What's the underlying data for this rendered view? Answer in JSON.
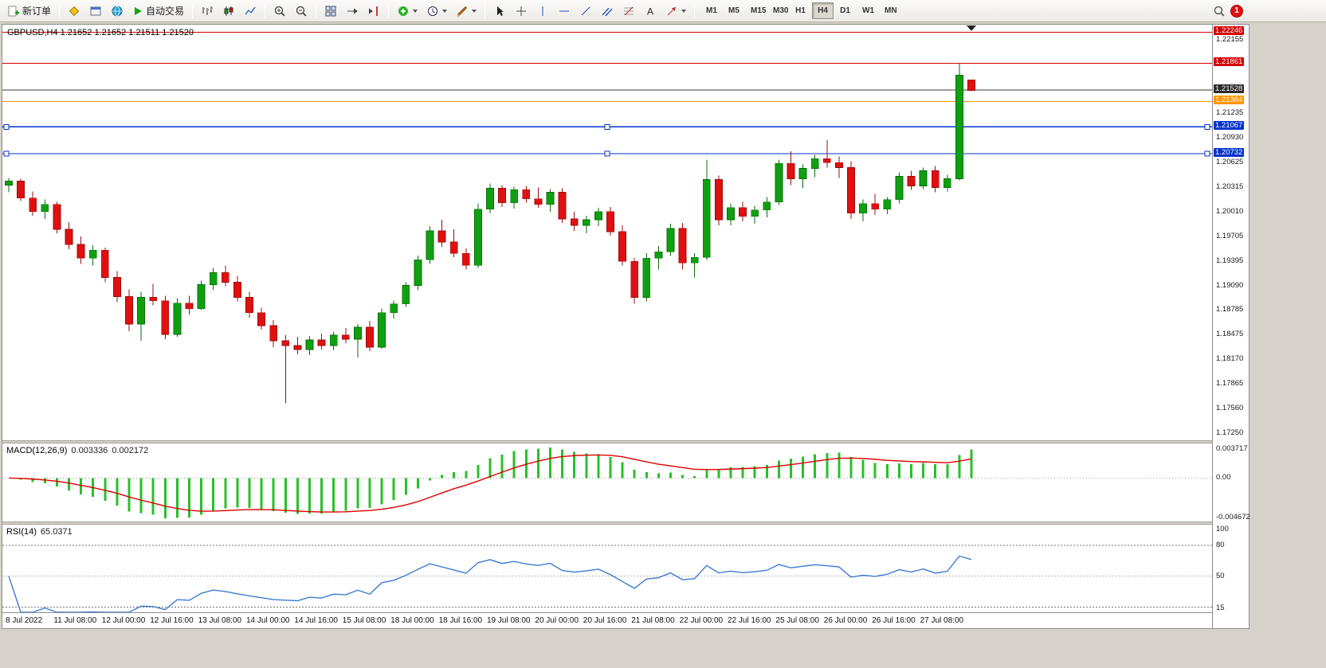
{
  "toolbar": {
    "new_order_label": "新订单",
    "autotrading_label": "自动交易",
    "text_tool_glyph": "A",
    "timeframes": [
      "M1",
      "M5",
      "M15",
      "M30",
      "H1",
      "H4",
      "D1",
      "W1",
      "MN"
    ],
    "active_timeframe": "H4",
    "notification_count": "1"
  },
  "chart_data": {
    "type": "candlestick",
    "symbol": "GBPUSD",
    "period": "H4",
    "title": "GBPUSD,H4 1.21652 1.21652 1.21511 1.21520",
    "current_bar": {
      "open": 1.21652,
      "high": 1.21652,
      "low": 1.21511,
      "close": 1.2152
    },
    "colors": {
      "up": "#0fa00f",
      "down": "#e01010",
      "up_wick": "#0a6e0a",
      "down_wick": "#9c0c0c",
      "macd_hist": "#28c028",
      "macd_signal": "#e00000",
      "rsi": "#3d7bd6",
      "line_red": "#d40000",
      "line_black": "#3a3a3a",
      "line_orange": "#ff9500",
      "line_blue": "#0033cc"
    },
    "price_axis": {
      "scale_max": 1.2234,
      "scale_min": 1.1716,
      "ticks": [
        1.22155,
        1.21235,
        1.2093,
        1.20625,
        1.20315,
        1.2001,
        1.19705,
        1.19395,
        1.1909,
        1.18785,
        1.18475,
        1.1817,
        1.17865,
        1.1756,
        1.1725
      ],
      "badges": [
        {
          "value": 1.22246,
          "color": "#d40000"
        },
        {
          "value": 1.21861,
          "color": "#d40000"
        },
        {
          "value": 1.21528,
          "color": "#2b2b2b"
        },
        {
          "value": 1.21384,
          "color": "#ff9500"
        },
        {
          "value": 1.21067,
          "color": "#0033cc"
        },
        {
          "value": 1.20732,
          "color": "#0033cc"
        }
      ]
    },
    "hlines": [
      {
        "price": 1.22246,
        "color": "#d40000"
      },
      {
        "price": 1.21861,
        "color": "#d40000"
      },
      {
        "price": 1.21528,
        "color": "#3a3a3a"
      },
      {
        "price": 1.21384,
        "color": "#ff9500"
      },
      {
        "price": 1.21067,
        "color": "#0033cc",
        "selected": true
      },
      {
        "price": 1.20732,
        "color": "#0033cc",
        "selected": true
      }
    ],
    "time_labels": [
      "8 Jul 2022",
      "11 Jul 08:00",
      "12 Jul 00:00",
      "12 Jul 16:00",
      "13 Jul 08:00",
      "14 Jul 00:00",
      "14 Jul 16:00",
      "15 Jul 08:00",
      "18 Jul 00:00",
      "18 Jul 16:00",
      "19 Jul 08:00",
      "20 Jul 00:00",
      "20 Jul 16:00",
      "21 Jul 08:00",
      "22 Jul 00:00",
      "22 Jul 16:00",
      "25 Jul 08:00",
      "26 Jul 00:00",
      "26 Jul 16:00",
      "27 Jul 08:00"
    ],
    "bars_per_time_label": 4,
    "ohlc": [
      [
        1.2034,
        1.2043,
        1.2025,
        1.2039
      ],
      [
        1.2039,
        1.2042,
        1.2014,
        1.2018
      ],
      [
        1.2018,
        1.2026,
        1.1996,
        1.2001
      ],
      [
        1.2001,
        1.2016,
        1.1992,
        1.201
      ],
      [
        1.201,
        1.2013,
        1.1974,
        1.1979
      ],
      [
        1.1979,
        1.1988,
        1.1954,
        1.196
      ],
      [
        1.196,
        1.197,
        1.1936,
        1.1943
      ],
      [
        1.1943,
        1.1959,
        1.1934,
        1.1953
      ],
      [
        1.1953,
        1.1956,
        1.1913,
        1.1919
      ],
      [
        1.1919,
        1.1927,
        1.1888,
        1.1895
      ],
      [
        1.1895,
        1.1904,
        1.1852,
        1.1861
      ],
      [
        1.1861,
        1.1901,
        1.184,
        1.1894
      ],
      [
        1.1894,
        1.1911,
        1.1884,
        1.189
      ],
      [
        1.189,
        1.1896,
        1.1842,
        1.1848
      ],
      [
        1.1848,
        1.1893,
        1.1845,
        1.1887
      ],
      [
        1.1887,
        1.1896,
        1.1873,
        1.188
      ],
      [
        1.188,
        1.1915,
        1.1878,
        1.191
      ],
      [
        1.191,
        1.1931,
        1.1903,
        1.1925
      ],
      [
        1.1925,
        1.1934,
        1.1908,
        1.1913
      ],
      [
        1.1913,
        1.1921,
        1.1889,
        1.1894
      ],
      [
        1.1894,
        1.1901,
        1.1869,
        1.1875
      ],
      [
        1.1875,
        1.1881,
        1.1854,
        1.1859
      ],
      [
        1.1859,
        1.1866,
        1.1832,
        1.184
      ],
      [
        1.184,
        1.1847,
        1.1762,
        1.1834
      ],
      [
        1.1834,
        1.1845,
        1.1823,
        1.1829
      ],
      [
        1.1829,
        1.1846,
        1.1822,
        1.1841
      ],
      [
        1.1841,
        1.1849,
        1.1829,
        1.1834
      ],
      [
        1.1834,
        1.1851,
        1.1828,
        1.1847
      ],
      [
        1.1847,
        1.1856,
        1.1837,
        1.1842
      ],
      [
        1.1842,
        1.1861,
        1.1819,
        1.1857
      ],
      [
        1.1857,
        1.1865,
        1.1827,
        1.1832
      ],
      [
        1.1832,
        1.188,
        1.183,
        1.1875
      ],
      [
        1.1875,
        1.189,
        1.1868,
        1.1886
      ],
      [
        1.1886,
        1.1913,
        1.1882,
        1.1909
      ],
      [
        1.1909,
        1.1946,
        1.1903,
        1.1941
      ],
      [
        1.1941,
        1.1983,
        1.1936,
        1.1977
      ],
      [
        1.1977,
        1.1991,
        1.1957,
        1.1963
      ],
      [
        1.1963,
        1.1979,
        1.1944,
        1.1949
      ],
      [
        1.1949,
        1.1955,
        1.1929,
        1.1934
      ],
      [
        1.1934,
        1.2011,
        1.1931,
        1.2004
      ],
      [
        1.2004,
        1.2036,
        1.1999,
        1.203
      ],
      [
        1.203,
        1.2034,
        1.2007,
        1.2012
      ],
      [
        1.2012,
        1.2032,
        1.2005,
        1.2028
      ],
      [
        1.2028,
        1.2033,
        1.2012,
        1.2017
      ],
      [
        1.2017,
        1.2031,
        1.2006,
        1.201
      ],
      [
        1.201,
        1.2029,
        1.2001,
        1.2025
      ],
      [
        1.2025,
        1.203,
        1.1987,
        1.1992
      ],
      [
        1.1992,
        1.2001,
        1.1977,
        1.1984
      ],
      [
        1.1984,
        1.1996,
        1.1974,
        1.1991
      ],
      [
        1.1991,
        1.2006,
        1.1983,
        1.2001
      ],
      [
        1.2001,
        1.2007,
        1.1971,
        1.1976
      ],
      [
        1.1976,
        1.1984,
        1.1934,
        1.1939
      ],
      [
        1.1939,
        1.1943,
        1.1886,
        1.1894
      ],
      [
        1.1894,
        1.1949,
        1.1889,
        1.1943
      ],
      [
        1.1943,
        1.1958,
        1.1929,
        1.1951
      ],
      [
        1.1951,
        1.1986,
        1.1946,
        1.198
      ],
      [
        1.198,
        1.1987,
        1.1929,
        1.1937
      ],
      [
        1.1937,
        1.1949,
        1.1919,
        1.1944
      ],
      [
        1.1944,
        1.2066,
        1.1941,
        1.2041
      ],
      [
        1.2041,
        1.2046,
        1.1984,
        1.1991
      ],
      [
        1.1991,
        1.2011,
        1.1984,
        1.2006
      ],
      [
        1.2006,
        1.2013,
        1.1989,
        1.1995
      ],
      [
        1.1995,
        1.2008,
        1.1986,
        1.2003
      ],
      [
        1.2003,
        1.2019,
        1.1994,
        1.2013
      ],
      [
        1.2013,
        1.2066,
        1.2009,
        1.2061
      ],
      [
        1.2061,
        1.2076,
        1.2034,
        1.2042
      ],
      [
        1.2042,
        1.206,
        1.203,
        1.2055
      ],
      [
        1.2055,
        1.2072,
        1.2044,
        1.2067
      ],
      [
        1.2067,
        1.209,
        1.2056,
        1.2062
      ],
      [
        1.2062,
        1.207,
        1.2043,
        1.2056
      ],
      [
        1.2056,
        1.2064,
        1.1992,
        1.1999
      ],
      [
        1.1999,
        1.2016,
        1.1989,
        1.2011
      ],
      [
        1.2011,
        1.2023,
        1.1997,
        1.2004
      ],
      [
        1.2004,
        1.2019,
        1.1998,
        1.2016
      ],
      [
        1.2016,
        1.205,
        1.2011,
        1.2045
      ],
      [
        1.2045,
        1.2052,
        1.2028,
        1.2033
      ],
      [
        1.2033,
        1.2056,
        1.2029,
        1.2052
      ],
      [
        1.2052,
        1.2058,
        1.2025,
        1.2031
      ],
      [
        1.2031,
        1.2047,
        1.2026,
        1.2042
      ],
      [
        1.2042,
        1.21861,
        1.204,
        1.2171
      ],
      [
        1.21652,
        1.21652,
        1.21511,
        1.2152
      ]
    ],
    "macd": {
      "name": "MACD(12,26,9)",
      "value_main": "0.003336",
      "value_signal": "0.002172",
      "axis": {
        "max": 0.003717,
        "min": -0.004672,
        "max_label": "0.003717",
        "zero_label": "0.00",
        "min_label": "-0.004672"
      }
    },
    "rsi": {
      "name": "RSI(14)",
      "value": "65.0371",
      "period": 14,
      "axis": {
        "max": 100,
        "min": 15,
        "labels": [
          "100",
          "80",
          "50",
          "15"
        ],
        "levels": [
          80,
          50,
          20
        ]
      }
    }
  }
}
